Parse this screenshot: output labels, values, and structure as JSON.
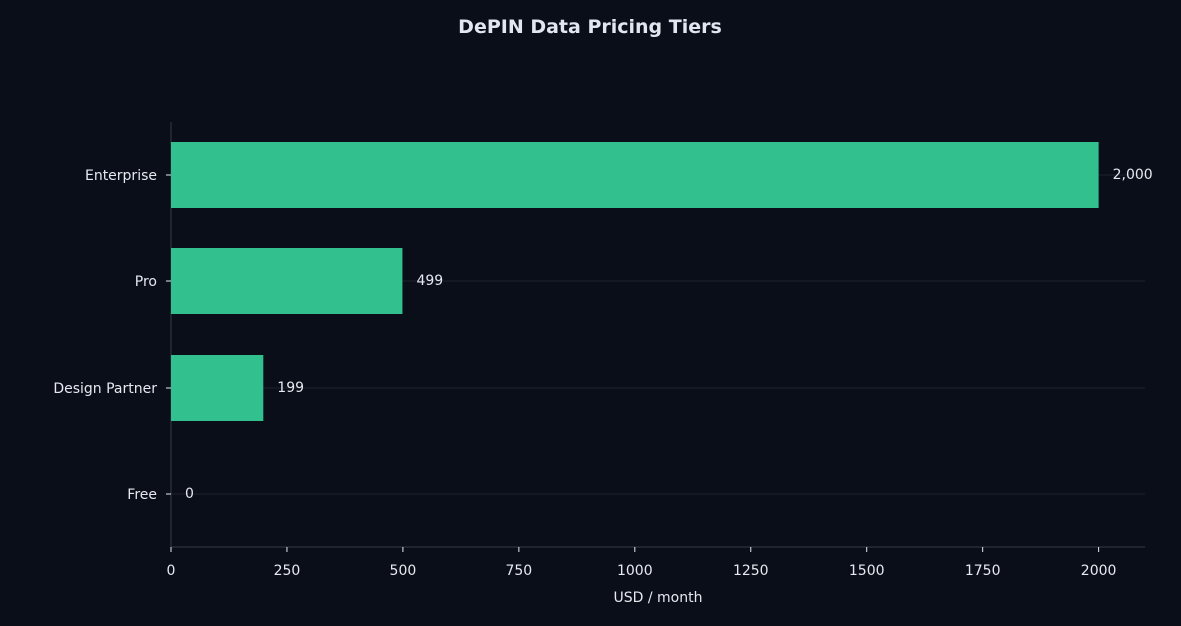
{
  "chart_data": {
    "type": "bar",
    "orientation": "horizontal",
    "title": "DePIN Data Pricing Tiers",
    "xlabel": "USD / month",
    "ylabel": "",
    "categories": [
      "Enterprise",
      "Pro",
      "Design Partner",
      "Free"
    ],
    "values": [
      2000,
      499,
      199,
      0
    ],
    "value_labels": [
      "2,000",
      "499",
      "199",
      "0"
    ],
    "xlim": [
      0,
      2100
    ],
    "xticks": [
      0,
      250,
      500,
      750,
      1000,
      1250,
      1500,
      1750,
      2000
    ],
    "xtick_labels": [
      "0",
      "250",
      "500",
      "750",
      "1000",
      "1250",
      "1500",
      "1750",
      "2000"
    ],
    "grid": "horizontal lines at category positions",
    "legend": "none"
  },
  "colors": {
    "background": "#0a0e18",
    "bar": "#31c08e",
    "text": "#e6e9ef",
    "title": "#e2e6ee",
    "axis": "#2c3242",
    "grid": "#161b27"
  }
}
